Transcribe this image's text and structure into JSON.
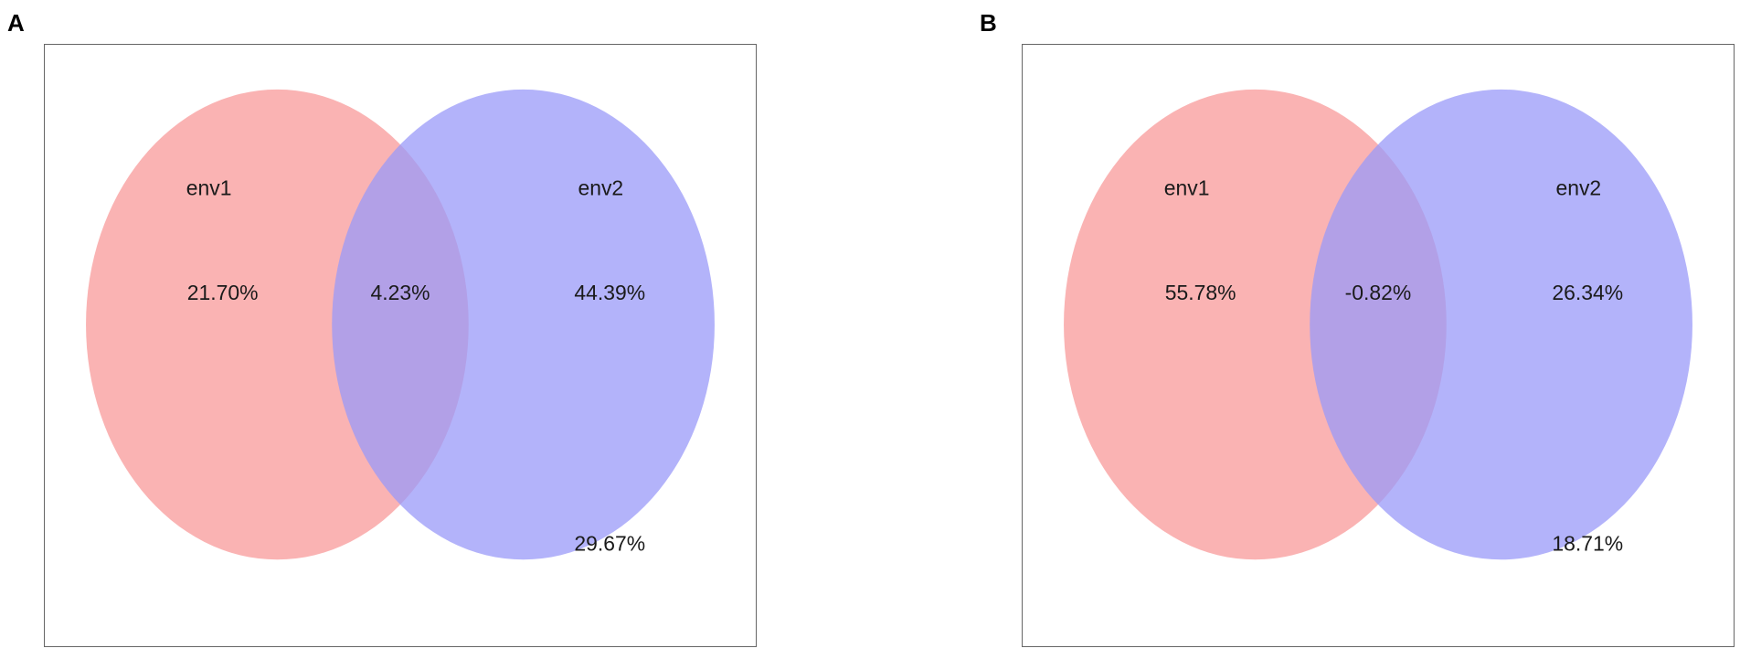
{
  "panels": [
    {
      "letter": "A",
      "set1_label": "env1",
      "set2_label": "env2",
      "only1": "21.70%",
      "overlap": "4.23%",
      "only2": "44.39%",
      "outside": "29.67%"
    },
    {
      "letter": "B",
      "set1_label": "env1",
      "set2_label": "env2",
      "only1": "55.78%",
      "overlap": "-0.82%",
      "only2": "26.34%",
      "outside": "18.71%"
    }
  ],
  "colors": {
    "set1": "#f89a9a",
    "set2": "#9a9af8",
    "border": "#666666"
  }
}
